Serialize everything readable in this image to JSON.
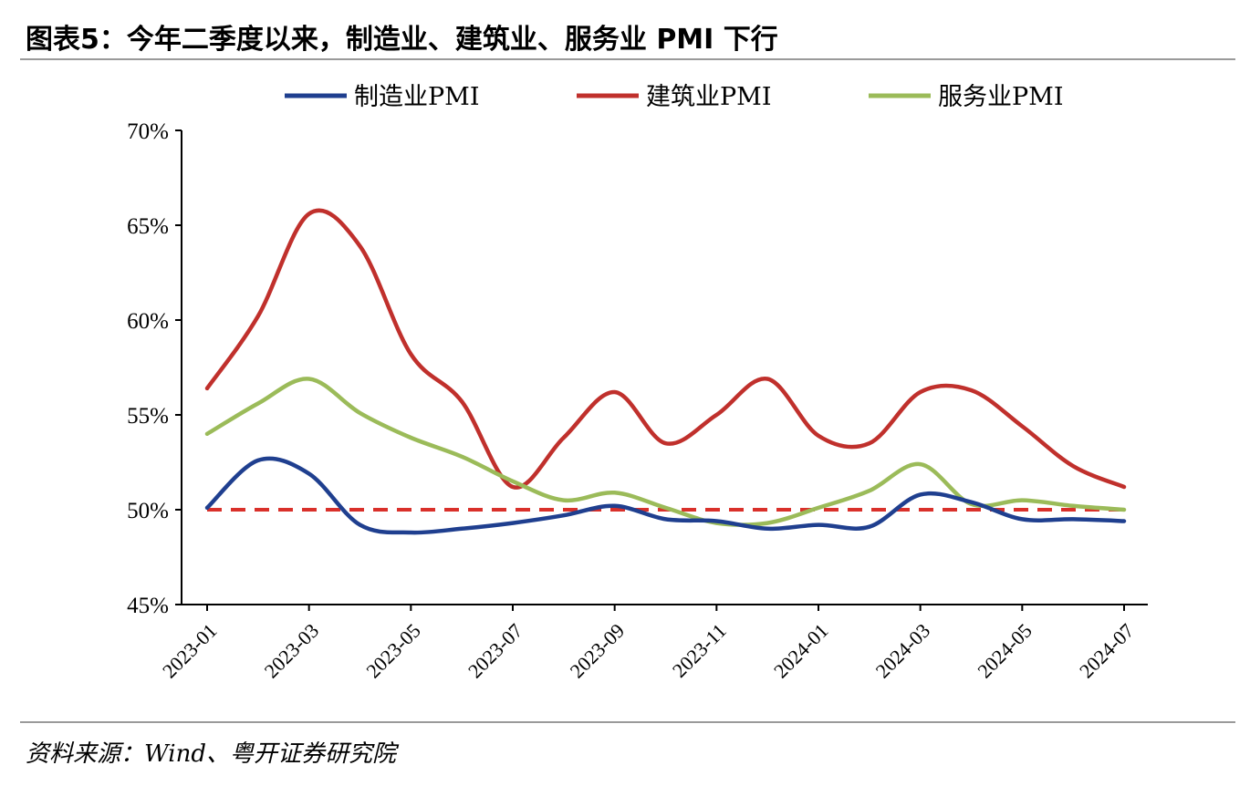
{
  "header": {
    "title": "图表5：今年二季度以来，制造业、建筑业、服务业 PMI 下行"
  },
  "footer": {
    "source": "资料来源：Wind、粤开证券研究院"
  },
  "chart_data": {
    "type": "line",
    "title": "图表5：今年二季度以来，制造业、建筑业、服务业 PMI 下行",
    "xlabel": "",
    "ylabel": "",
    "ylim": [
      45,
      70
    ],
    "yticks": [
      "45%",
      "50%",
      "55%",
      "60%",
      "65%",
      "70%"
    ],
    "x": [
      "2023-01",
      "2023-02",
      "2023-03",
      "2023-04",
      "2023-05",
      "2023-06",
      "2023-07",
      "2023-08",
      "2023-09",
      "2023-10",
      "2023-11",
      "2023-12",
      "2024-01",
      "2024-02",
      "2024-03",
      "2024-04",
      "2024-05",
      "2024-06",
      "2024-07"
    ],
    "xtick_labels": [
      "2023-01",
      "2023-03",
      "2023-05",
      "2023-07",
      "2023-09",
      "2023-11",
      "2024-01",
      "2024-03",
      "2024-05",
      "2024-07"
    ],
    "grid": false,
    "legend_position": "top",
    "reference_line": {
      "y": 50,
      "style": "dashed",
      "color": "#d9302a"
    },
    "series": [
      {
        "name": "制造业PMI",
        "color": "#1f3f8f",
        "values": [
          50.1,
          52.6,
          51.9,
          49.2,
          48.8,
          49.0,
          49.3,
          49.7,
          50.2,
          49.5,
          49.4,
          49.0,
          49.2,
          49.1,
          50.8,
          50.4,
          49.5,
          49.5,
          49.4
        ]
      },
      {
        "name": "建筑业PMI",
        "color": "#c0302c",
        "values": [
          56.4,
          60.2,
          65.6,
          63.9,
          58.2,
          55.7,
          51.2,
          53.8,
          56.2,
          53.5,
          55.0,
          56.9,
          53.9,
          53.5,
          56.2,
          56.3,
          54.4,
          52.3,
          51.2
        ]
      },
      {
        "name": "服务业PMI",
        "color": "#9bbb59",
        "values": [
          54.0,
          55.6,
          56.9,
          55.1,
          53.8,
          52.8,
          51.5,
          50.5,
          50.9,
          50.1,
          49.3,
          49.3,
          50.1,
          51.0,
          52.4,
          50.3,
          50.5,
          50.2,
          50.0
        ]
      }
    ]
  }
}
